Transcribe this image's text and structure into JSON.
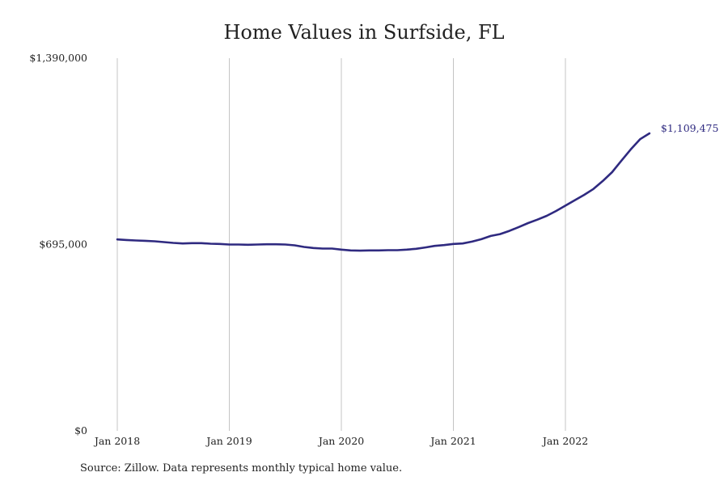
{
  "chart_data": {
    "type": "line",
    "title": "Home Values in Surfside, FL",
    "xlabel": "",
    "ylabel": "",
    "x_tick_labels": [
      "Jan 2018",
      "Jan 2019",
      "Jan 2020",
      "Jan 2021",
      "Jan 2022"
    ],
    "y_tick_labels": [
      "$0",
      "$695,000",
      "$1,390,000"
    ],
    "ylim": [
      0,
      1390000
    ],
    "xlim": [
      "2018-01",
      "2022-08"
    ],
    "grid": "vertical",
    "line_color": "#2f2a80",
    "end_label": "$1,109,475",
    "series": [
      {
        "values": [
          [
            "2018-01",
            714000
          ],
          [
            "2018-02",
            712000
          ],
          [
            "2018-03",
            710000
          ],
          [
            "2018-04",
            709000
          ],
          [
            "2018-05",
            707000
          ],
          [
            "2018-06",
            704000
          ],
          [
            "2018-07",
            701000
          ],
          [
            "2018-08",
            699000
          ],
          [
            "2018-09",
            700000
          ],
          [
            "2018-10",
            700000
          ],
          [
            "2018-11",
            698000
          ],
          [
            "2018-12",
            697000
          ],
          [
            "2019-01",
            695000
          ],
          [
            "2019-02",
            695000
          ],
          [
            "2019-03",
            694000
          ],
          [
            "2019-04",
            695000
          ],
          [
            "2019-05",
            696000
          ],
          [
            "2019-06",
            696000
          ],
          [
            "2019-07",
            695000
          ],
          [
            "2019-08",
            692000
          ],
          [
            "2019-09",
            686000
          ],
          [
            "2019-10",
            682000
          ],
          [
            "2019-11",
            680000
          ],
          [
            "2019-12",
            680000
          ],
          [
            "2020-01",
            676000
          ],
          [
            "2020-02",
            673000
          ],
          [
            "2020-03",
            672000
          ],
          [
            "2020-04",
            673000
          ],
          [
            "2020-05",
            673000
          ],
          [
            "2020-06",
            674000
          ],
          [
            "2020-07",
            674000
          ],
          [
            "2020-08",
            676000
          ],
          [
            "2020-09",
            679000
          ],
          [
            "2020-10",
            684000
          ],
          [
            "2020-11",
            690000
          ],
          [
            "2020-12",
            693000
          ],
          [
            "2021-01",
            697000
          ],
          [
            "2021-02",
            699000
          ],
          [
            "2021-03",
            706000
          ],
          [
            "2021-04",
            715000
          ],
          [
            "2021-05",
            727000
          ],
          [
            "2021-06",
            734000
          ],
          [
            "2021-07",
            746000
          ],
          [
            "2021-08",
            760000
          ],
          [
            "2021-09",
            775000
          ],
          [
            "2021-10",
            788000
          ],
          [
            "2021-11",
            802000
          ],
          [
            "2021-12",
            820000
          ],
          [
            "2022-01",
            840000
          ],
          [
            "2022-02",
            860000
          ],
          [
            "2022-03",
            880000
          ],
          [
            "2022-04",
            902000
          ],
          [
            "2022-05",
            932000
          ],
          [
            "2022-06",
            965000
          ],
          [
            "2022-07",
            1008000
          ],
          [
            "2022-08",
            1050000
          ],
          [
            "2022-09",
            1088000
          ],
          [
            "2022-10",
            1109475
          ]
        ]
      }
    ]
  },
  "source_note": "Source: Zillow. Data represents monthly typical home value."
}
